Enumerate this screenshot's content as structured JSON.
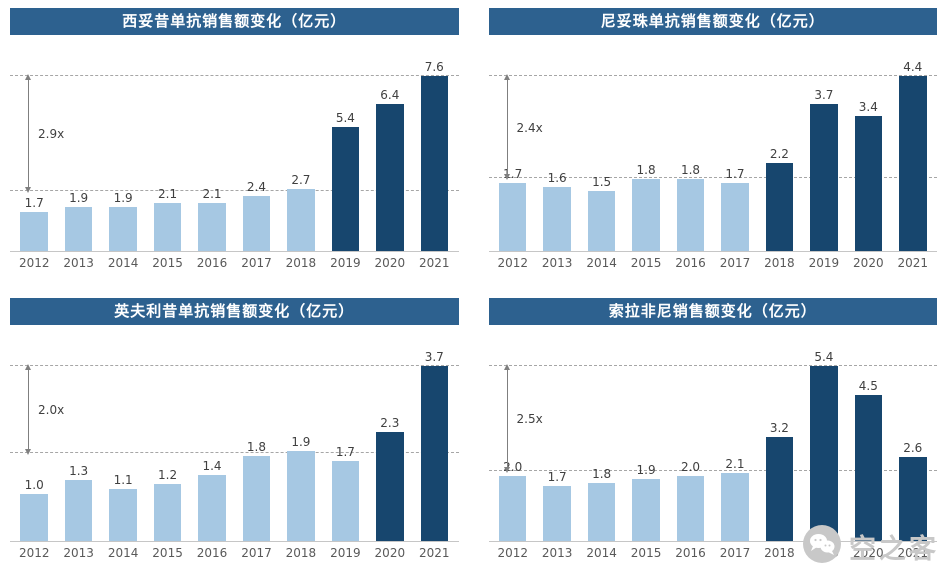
{
  "colors": {
    "title_bg": "#2d618f",
    "title_text": "#ffffff",
    "light_bar": "#a6c8e3",
    "dark_bar": "#17466e",
    "gridline": "#a6a6a6",
    "arrow": "#7f7f7f",
    "value_text": "#404040",
    "axis_text": "#595959",
    "watermark": "#c8c8c8"
  },
  "watermark": {
    "text": "空之客",
    "icon": "wechat-bubbles-icon"
  },
  "chart_data": [
    {
      "type": "bar",
      "title": "西妥昔单抗销售额变化（亿元）",
      "categories": [
        "2012",
        "2013",
        "2014",
        "2015",
        "2016",
        "2017",
        "2018",
        "2019",
        "2020",
        "2021"
      ],
      "values": [
        1.7,
        1.9,
        1.9,
        2.1,
        2.1,
        2.4,
        2.7,
        5.4,
        6.4,
        7.6
      ],
      "highlight_from_index": 7,
      "multiplier_label": "2.9x",
      "reference_value": 2.6,
      "ylim": [
        0,
        7.6
      ],
      "grid": "two dashed horizontal reference lines with double-headed arrow",
      "legend": "none; light bars = earlier years, dark bars = post-growth years"
    },
    {
      "type": "bar",
      "title": "尼妥珠单抗销售额变化（亿元）",
      "categories": [
        "2012",
        "2013",
        "2014",
        "2015",
        "2016",
        "2017",
        "2018",
        "2019",
        "2020",
        "2021"
      ],
      "values": [
        1.7,
        1.6,
        1.5,
        1.8,
        1.8,
        1.7,
        2.2,
        3.7,
        3.4,
        4.4
      ],
      "highlight_from_index": 6,
      "multiplier_label": "2.4x",
      "reference_value": 1.83,
      "ylim": [
        0,
        4.4
      ],
      "grid": "two dashed horizontal reference lines with double-headed arrow",
      "legend": "none; light bars = earlier years, dark bars = post-growth years"
    },
    {
      "type": "bar",
      "title": "英夫利昔单抗销售额变化（亿元）",
      "categories": [
        "2012",
        "2013",
        "2014",
        "2015",
        "2016",
        "2017",
        "2018",
        "2019",
        "2020",
        "2021"
      ],
      "values": [
        1.0,
        1.3,
        1.1,
        1.2,
        1.4,
        1.8,
        1.9,
        1.7,
        2.3,
        3.7
      ],
      "highlight_from_index": 8,
      "multiplier_label": "2.0x",
      "reference_value": 1.85,
      "ylim": [
        0,
        3.7
      ],
      "grid": "two dashed horizontal reference lines with double-headed arrow",
      "legend": "none; light bars = earlier years, dark bars = post-growth years"
    },
    {
      "type": "bar",
      "title": "索拉非尼销售额变化（亿元）",
      "categories": [
        "2012",
        "2013",
        "2014",
        "2015",
        "2016",
        "2017",
        "2018",
        "2019",
        "2020",
        "2021"
      ],
      "values": [
        2.0,
        1.7,
        1.8,
        1.9,
        2.0,
        2.1,
        3.2,
        5.4,
        4.5,
        2.6
      ],
      "highlight_from_index": 6,
      "multiplier_label": "2.5x",
      "reference_value": 2.16,
      "ylim": [
        0,
        5.4
      ],
      "grid": "two dashed horizontal reference lines with double-headed arrow",
      "legend": "none; light bars = earlier years, dark bars = post-growth years"
    }
  ]
}
